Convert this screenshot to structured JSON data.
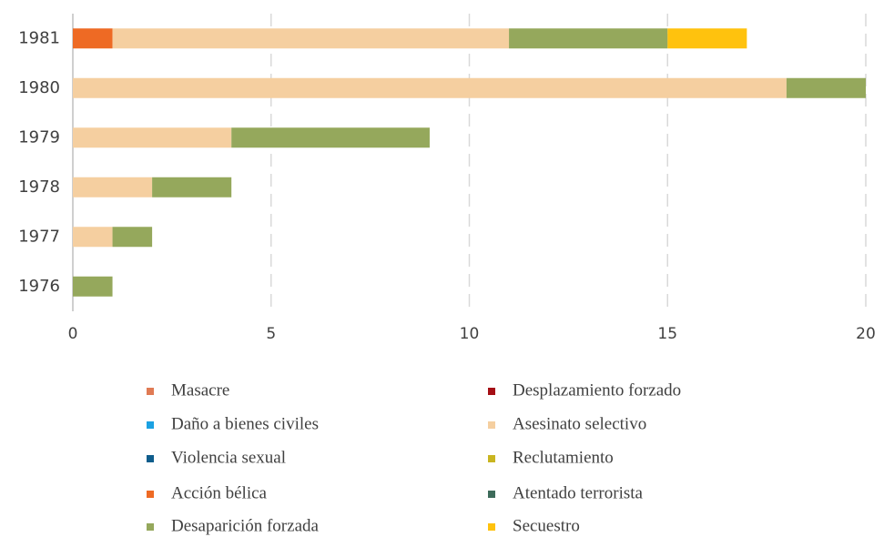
{
  "chart_data": {
    "type": "bar",
    "orientation": "horizontal",
    "stacked": true,
    "categories": [
      "1981",
      "1980",
      "1979",
      "1978",
      "1977",
      "1976"
    ],
    "series": [
      {
        "name": "Acción bélica",
        "color": "#ee6a24",
        "values": [
          1,
          0,
          0,
          0,
          0,
          0
        ]
      },
      {
        "name": "Asesinato selectivo",
        "color": "#f5cfa0",
        "values": [
          10,
          18,
          4,
          2,
          1,
          0
        ]
      },
      {
        "name": "Desaparición forzada",
        "color": "#95a85c",
        "values": [
          4,
          2,
          5,
          2,
          1,
          1
        ]
      },
      {
        "name": "Secuestro",
        "color": "#ffc20e",
        "values": [
          2,
          0,
          0,
          0,
          0,
          0
        ]
      },
      {
        "name": "Masacre",
        "color": "#e07b54",
        "values": [
          0,
          0,
          0,
          0,
          0,
          0
        ]
      },
      {
        "name": "Desplazamiento forzado",
        "color": "#a50f15",
        "values": [
          0,
          0,
          0,
          0,
          0,
          0
        ]
      },
      {
        "name": "Daño a bienes civiles",
        "color": "#1ba1e2",
        "values": [
          0,
          0,
          0,
          0,
          0,
          0
        ]
      },
      {
        "name": "Violencia sexual",
        "color": "#0f5d8c",
        "values": [
          0,
          0,
          0,
          0,
          0,
          0
        ]
      },
      {
        "name": "Reclutamiento",
        "color": "#c9b520",
        "values": [
          0,
          0,
          0,
          0,
          0,
          0
        ]
      },
      {
        "name": "Atentado terrorista",
        "color": "#3d6b5a",
        "values": [
          0,
          0,
          0,
          0,
          0,
          0
        ]
      }
    ],
    "xlim": [
      0,
      20
    ],
    "xticks": [
      0,
      5,
      10,
      15,
      20
    ],
    "grid": true,
    "legend": "bottom"
  }
}
